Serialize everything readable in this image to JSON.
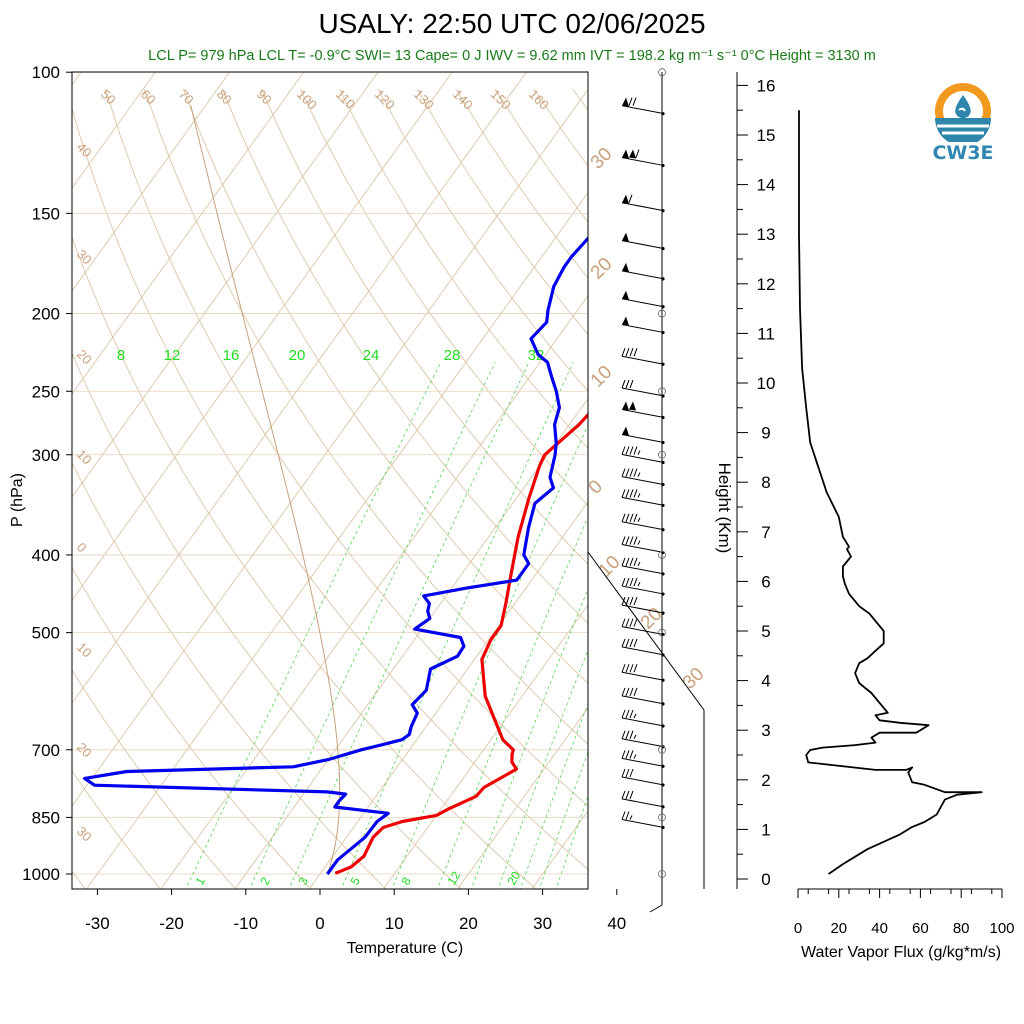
{
  "header": {
    "title": "USALY: 22:50 UTC 02/06/2025",
    "subtitle": "LCL P= 979 hPa  LCL T= -0.9°C  SWI= 13  Cape= 0 J  IWV = 9.62 mm  IVT = 198.2 kg m⁻¹ s⁻¹  0°C Height = 3130 m"
  },
  "logo": {
    "text": "CW3E",
    "icon": "water-drop-sun-logo"
  },
  "chart_data": [
    {
      "type": "line",
      "name": "skew-t",
      "xlabel": "Temperature (C)",
      "ylabel": "P (hPa)",
      "xlim": [
        -33,
        50
      ],
      "ylim": [
        1030,
        100
      ],
      "y_scale": "log",
      "x_ticks": [
        "-30",
        "-20",
        "-10",
        "0",
        "10",
        "20",
        "30",
        "40"
      ],
      "y_ticks": [
        "100",
        "150",
        "200",
        "250",
        "300",
        "400",
        "500",
        "700",
        "850",
        "1000"
      ],
      "dry_adiabat_labels": [
        "50",
        "60",
        "70",
        "80",
        "90",
        "100",
        "110",
        "120",
        "130",
        "140",
        "150",
        "160",
        "40",
        "30",
        "20",
        "10",
        "0",
        "10",
        "20",
        "30"
      ],
      "dewpoint_colors": {
        "temperature": "#ee0000",
        "dewpoint": "#0000ee"
      },
      "isotherm_labels": [
        "30",
        "20",
        "10",
        "0",
        "10",
        "20",
        "30"
      ],
      "mixing_ratio_labels": [
        "8",
        "12",
        "16",
        "20",
        "24",
        "28",
        "32"
      ],
      "mixing_ratio_bottom_labels": [
        "1",
        "2",
        "3",
        "5",
        "8",
        "12",
        "20"
      ],
      "series": [
        {
          "color": "#ee0000",
          "values": [
            [
              998,
              2.0
            ],
            [
              980,
              3.5
            ],
            [
              950,
              4.2
            ],
            [
              900,
              3.6
            ],
            [
              875,
              4.0
            ],
            [
              860,
              6.0
            ],
            [
              845,
              10.0
            ],
            [
              830,
              11.0
            ],
            [
              800,
              13.5
            ],
            [
              780,
              13.7
            ],
            [
              760,
              15.0
            ],
            [
              740,
              16.3
            ],
            [
              725,
              15.0
            ],
            [
              710,
              14.3
            ],
            [
              700,
              14.0
            ],
            [
              680,
              11.6
            ],
            [
              600,
              5.0
            ],
            [
              540,
              1.0
            ],
            [
              510,
              0.3
            ],
            [
              490,
              0.3
            ],
            [
              460,
              -1.2
            ],
            [
              420,
              -3.5
            ],
            [
              380,
              -6.0
            ],
            [
              340,
              -8.3
            ],
            [
              310,
              -10.0
            ],
            [
              300,
              -10.4
            ],
            [
              285,
              -9.4
            ],
            [
              275,
              -8.7
            ],
            [
              260,
              -8.2
            ],
            [
              250,
              -8.2
            ],
            [
              240,
              -7.8
            ],
            [
              225,
              -7.3
            ],
            [
              215,
              -6.0
            ],
            [
              205,
              -4.6
            ],
            [
              195,
              -3.5
            ],
            [
              185,
              -2.0
            ],
            [
              178,
              -0.7
            ],
            [
              170,
              0.8
            ],
            [
              165,
              1.8
            ],
            [
              160,
              2.0
            ],
            [
              150,
              1.5
            ],
            [
              140,
              0.2
            ],
            [
              130,
              -0.3
            ],
            [
              120,
              -0.5
            ],
            [
              115,
              -0.7
            ],
            [
              110,
              -1.0
            ]
          ]
        },
        {
          "color": "#0000ee",
          "values": [
            [
              1000,
              1.0
            ],
            [
              960,
              1.0
            ],
            [
              900,
              2.5
            ],
            [
              860,
              2.6
            ],
            [
              840,
              3.3
            ],
            [
              825,
              -4.5
            ],
            [
              810,
              -4.5
            ],
            [
              795,
              -4.3
            ],
            [
              790,
              -7.0
            ],
            [
              775,
              -39.0
            ],
            [
              760,
              -41.0
            ],
            [
              745,
              -36.0
            ],
            [
              735,
              -14.0
            ],
            [
              720,
              -10.0
            ],
            [
              700,
              -6.5
            ],
            [
              690,
              -4.2
            ],
            [
              680,
              -2.0
            ],
            [
              670,
              -1.5
            ],
            [
              655,
              -2.0
            ],
            [
              630,
              -2.5
            ],
            [
              615,
              -4.0
            ],
            [
              590,
              -3.5
            ],
            [
              555,
              -5.0
            ],
            [
              535,
              -2.6
            ],
            [
              520,
              -2.7
            ],
            [
              507,
              -4.0
            ],
            [
              495,
              -11.0
            ],
            [
              480,
              -10.0
            ],
            [
              470,
              -11.0
            ],
            [
              460,
              -11.5
            ],
            [
              450,
              -13.0
            ],
            [
              440,
              -8.0
            ],
            [
              430,
              -2.0
            ],
            [
              410,
              -2.0
            ],
            [
              400,
              -3.5
            ],
            [
              370,
              -5.5
            ],
            [
              345,
              -7.0
            ],
            [
              330,
              -6.0
            ],
            [
              320,
              -7.5
            ],
            [
              300,
              -9.0
            ],
            [
              290,
              -10.0
            ],
            [
              275,
              -12.0
            ],
            [
              262,
              -13.0
            ],
            [
              250,
              -15.0
            ],
            [
              240,
              -17.0
            ],
            [
              230,
              -19.0
            ],
            [
              225,
              -21.0
            ],
            [
              215,
              -23.5
            ],
            [
              205,
              -23.0
            ],
            [
              198,
              -24.0
            ],
            [
              185,
              -25.5
            ],
            [
              175,
              -26.0
            ],
            [
              170,
              -26.0
            ],
            [
              160,
              -25.5
            ],
            [
              150,
              -27.0
            ],
            [
              140,
              -28.0
            ],
            [
              130,
              -28.5
            ],
            [
              125,
              -28.0
            ],
            [
              120,
              -30.0
            ],
            [
              115,
              -30.0
            ],
            [
              110,
              -28.5
            ]
          ]
        }
      ],
      "wind_barbs": [
        {
          "p": 112,
          "kt": 70
        },
        {
          "p": 130,
          "kt": 110
        },
        {
          "p": 148,
          "kt": 60
        },
        {
          "p": 165,
          "kt": 50
        },
        {
          "p": 180,
          "kt": 50
        },
        {
          "p": 195,
          "kt": 50
        },
        {
          "p": 210,
          "kt": 50
        },
        {
          "p": 230,
          "kt": 40
        },
        {
          "p": 252,
          "kt": 30
        },
        {
          "p": 268,
          "kt": 100
        },
        {
          "p": 288,
          "kt": 50
        },
        {
          "p": 305,
          "kt": 45
        },
        {
          "p": 325,
          "kt": 45
        },
        {
          "p": 345,
          "kt": 45
        },
        {
          "p": 370,
          "kt": 45
        },
        {
          "p": 395,
          "kt": 45
        },
        {
          "p": 420,
          "kt": 45
        },
        {
          "p": 445,
          "kt": 45
        },
        {
          "p": 470,
          "kt": 40
        },
        {
          "p": 500,
          "kt": 40
        },
        {
          "p": 530,
          "kt": 40
        },
        {
          "p": 570,
          "kt": 40
        },
        {
          "p": 610,
          "kt": 40
        },
        {
          "p": 650,
          "kt": 35
        },
        {
          "p": 690,
          "kt": 35
        },
        {
          "p": 730,
          "kt": 35
        },
        {
          "p": 770,
          "kt": 30
        },
        {
          "p": 820,
          "kt": 30
        },
        {
          "p": 870,
          "kt": 25
        }
      ]
    },
    {
      "type": "line",
      "name": "water-vapor-flux",
      "xlabel": "Water Vapor Flux (g/kg*m/s)",
      "ylabel": "Height (Km)",
      "xlim": [
        0,
        100
      ],
      "ylim": [
        -0.3,
        16.4
      ],
      "x_ticks": [
        "0",
        "20",
        "40",
        "60",
        "80",
        "100"
      ],
      "y_ticks": [
        "0",
        "1",
        "2",
        "3",
        "4",
        "5",
        "6",
        "7",
        "8",
        "9",
        "10",
        "11",
        "12",
        "13",
        "14",
        "15",
        "16"
      ],
      "series": [
        {
          "color": "#000000",
          "values": [
            [
              15,
              0.1
            ],
            [
              22,
              0.3
            ],
            [
              28,
              0.45
            ],
            [
              34,
              0.6
            ],
            [
              42,
              0.75
            ],
            [
              50,
              0.9
            ],
            [
              56,
              1.05
            ],
            [
              62,
              1.15
            ],
            [
              68,
              1.3
            ],
            [
              72,
              1.6
            ],
            [
              78,
              1.7
            ],
            [
              90,
              1.75
            ],
            [
              72,
              1.75
            ],
            [
              62,
              1.9
            ],
            [
              56,
              1.95
            ],
            [
              54,
              2.15
            ],
            [
              56,
              2.25
            ],
            [
              53,
              2.2
            ],
            [
              38,
              2.2
            ],
            [
              16,
              2.3
            ],
            [
              5,
              2.35
            ],
            [
              4,
              2.5
            ],
            [
              6,
              2.6
            ],
            [
              12,
              2.65
            ],
            [
              28,
              2.7
            ],
            [
              38,
              2.75
            ],
            [
              36,
              2.85
            ],
            [
              40,
              2.95
            ],
            [
              58,
              2.95
            ],
            [
              62,
              3.05
            ],
            [
              64,
              3.1
            ],
            [
              50,
              3.15
            ],
            [
              40,
              3.2
            ],
            [
              38,
              3.3
            ],
            [
              44,
              3.35
            ],
            [
              40,
              3.55
            ],
            [
              36,
              3.75
            ],
            [
              30,
              3.95
            ],
            [
              28,
              4.15
            ],
            [
              30,
              4.35
            ],
            [
              34,
              4.45
            ],
            [
              38,
              4.6
            ],
            [
              42,
              4.75
            ],
            [
              42,
              5.0
            ],
            [
              38,
              5.2
            ],
            [
              35,
              5.35
            ],
            [
              30,
              5.5
            ],
            [
              28,
              5.6
            ],
            [
              25,
              5.75
            ],
            [
              23,
              5.95
            ],
            [
              22,
              6.1
            ],
            [
              22,
              6.3
            ],
            [
              26,
              6.5
            ],
            [
              24,
              6.65
            ],
            [
              25,
              6.7
            ],
            [
              22,
              6.9
            ],
            [
              20,
              7.3
            ],
            [
              14,
              7.8
            ],
            [
              10,
              8.3
            ],
            [
              6,
              8.8
            ],
            [
              4,
              9.5
            ],
            [
              2,
              10.3
            ],
            [
              1,
              11.5
            ],
            [
              0.5,
              13
            ],
            [
              0.5,
              14.5
            ],
            [
              0.5,
              15.5
            ]
          ]
        }
      ]
    }
  ]
}
